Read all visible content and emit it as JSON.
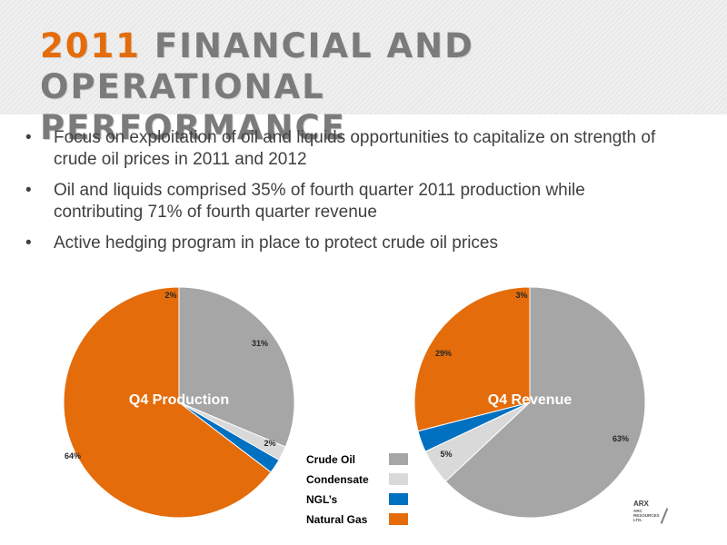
{
  "slide": {
    "title_year": "2011",
    "title_rest": "FINANCIAL AND OPERATIONAL",
    "title_line2": "PERFORMANCE",
    "bullet_marker": "•",
    "bullets": [
      {
        "line1": "Focus on exploitation of oil and liquids opportunities to capitalize on strength of",
        "line2": "crude oil prices in 2011 and 2012"
      },
      {
        "line1": "Oil and liquids comprised 35% of fourth quarter 2011 production while",
        "line2": "contributing 71% of fourth quarter revenue"
      },
      {
        "line1": "Active hedging program in place to protect crude oil prices",
        "line2": ""
      }
    ],
    "logo": {
      "brand": "ARX",
      "sub": [
        "ARC",
        "RESOURCES",
        "LTD."
      ]
    }
  },
  "colors": {
    "crude_oil": "#a6a6a6",
    "condensate": "#d9d9d9",
    "ngl": "#0070c0",
    "natural_gas": "#e46c0a",
    "title_accent": "#e46c0a",
    "title_gray": "#7b7b7b"
  },
  "chart_data": [
    {
      "type": "pie",
      "title": "Q4 Production",
      "categories": [
        "Crude Oil",
        "Condensate",
        "NGL’s",
        "Natural Gas"
      ],
      "values": [
        31,
        2,
        2,
        64
      ],
      "labels": [
        "31%",
        "2%",
        "2%",
        "64%"
      ],
      "legend": "right"
    },
    {
      "type": "pie",
      "title": "Q4 Revenue",
      "categories": [
        "Crude Oil",
        "Condensate",
        "NGL’s",
        "Natural Gas"
      ],
      "values": [
        63,
        5,
        3,
        29
      ],
      "labels": [
        "63%",
        "5%",
        "3%",
        "29%"
      ],
      "legend": "left"
    }
  ],
  "legend": {
    "items": [
      {
        "label": "Crude Oil",
        "color": "#a6a6a6"
      },
      {
        "label": "Condensate",
        "color": "#d9d9d9"
      },
      {
        "label": "NGL’s",
        "color": "#0070c0"
      },
      {
        "label": "Natural Gas",
        "color": "#e46c0a"
      }
    ]
  }
}
